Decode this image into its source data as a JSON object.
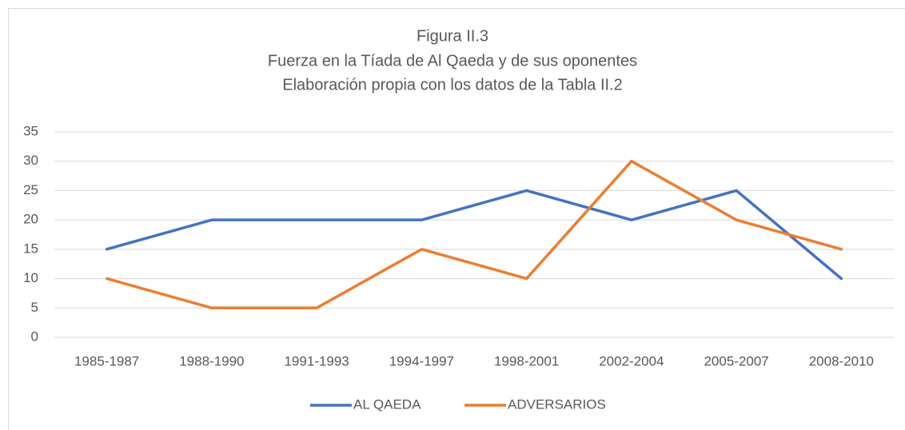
{
  "chart_data": {
    "type": "line",
    "title": "Figura  II.3",
    "subtitle": "Fuerza en la Tíada de Al Qaeda y de sus oponentes",
    "subtitle2": "Elaboración propia con los datos de la Tabla II.2",
    "categories": [
      "1985-1987",
      "1988-1990",
      "1991-1993",
      "1994-1997",
      "1998-2001",
      "2002-2004",
      "2005-2007",
      "2008-2010"
    ],
    "series": [
      {
        "name": "AL QAEDA",
        "color": "#4472c4",
        "values": [
          15,
          20,
          20,
          20,
          25,
          20,
          25,
          10
        ]
      },
      {
        "name": "ADVERSARIOS",
        "color": "#ed7d31",
        "values": [
          10,
          5,
          5,
          15,
          10,
          30,
          20,
          15
        ]
      }
    ],
    "ylim": [
      0,
      35
    ],
    "yticks": [
      0,
      5,
      10,
      15,
      20,
      25,
      30,
      35
    ],
    "grid": true,
    "legend": "bottom"
  }
}
